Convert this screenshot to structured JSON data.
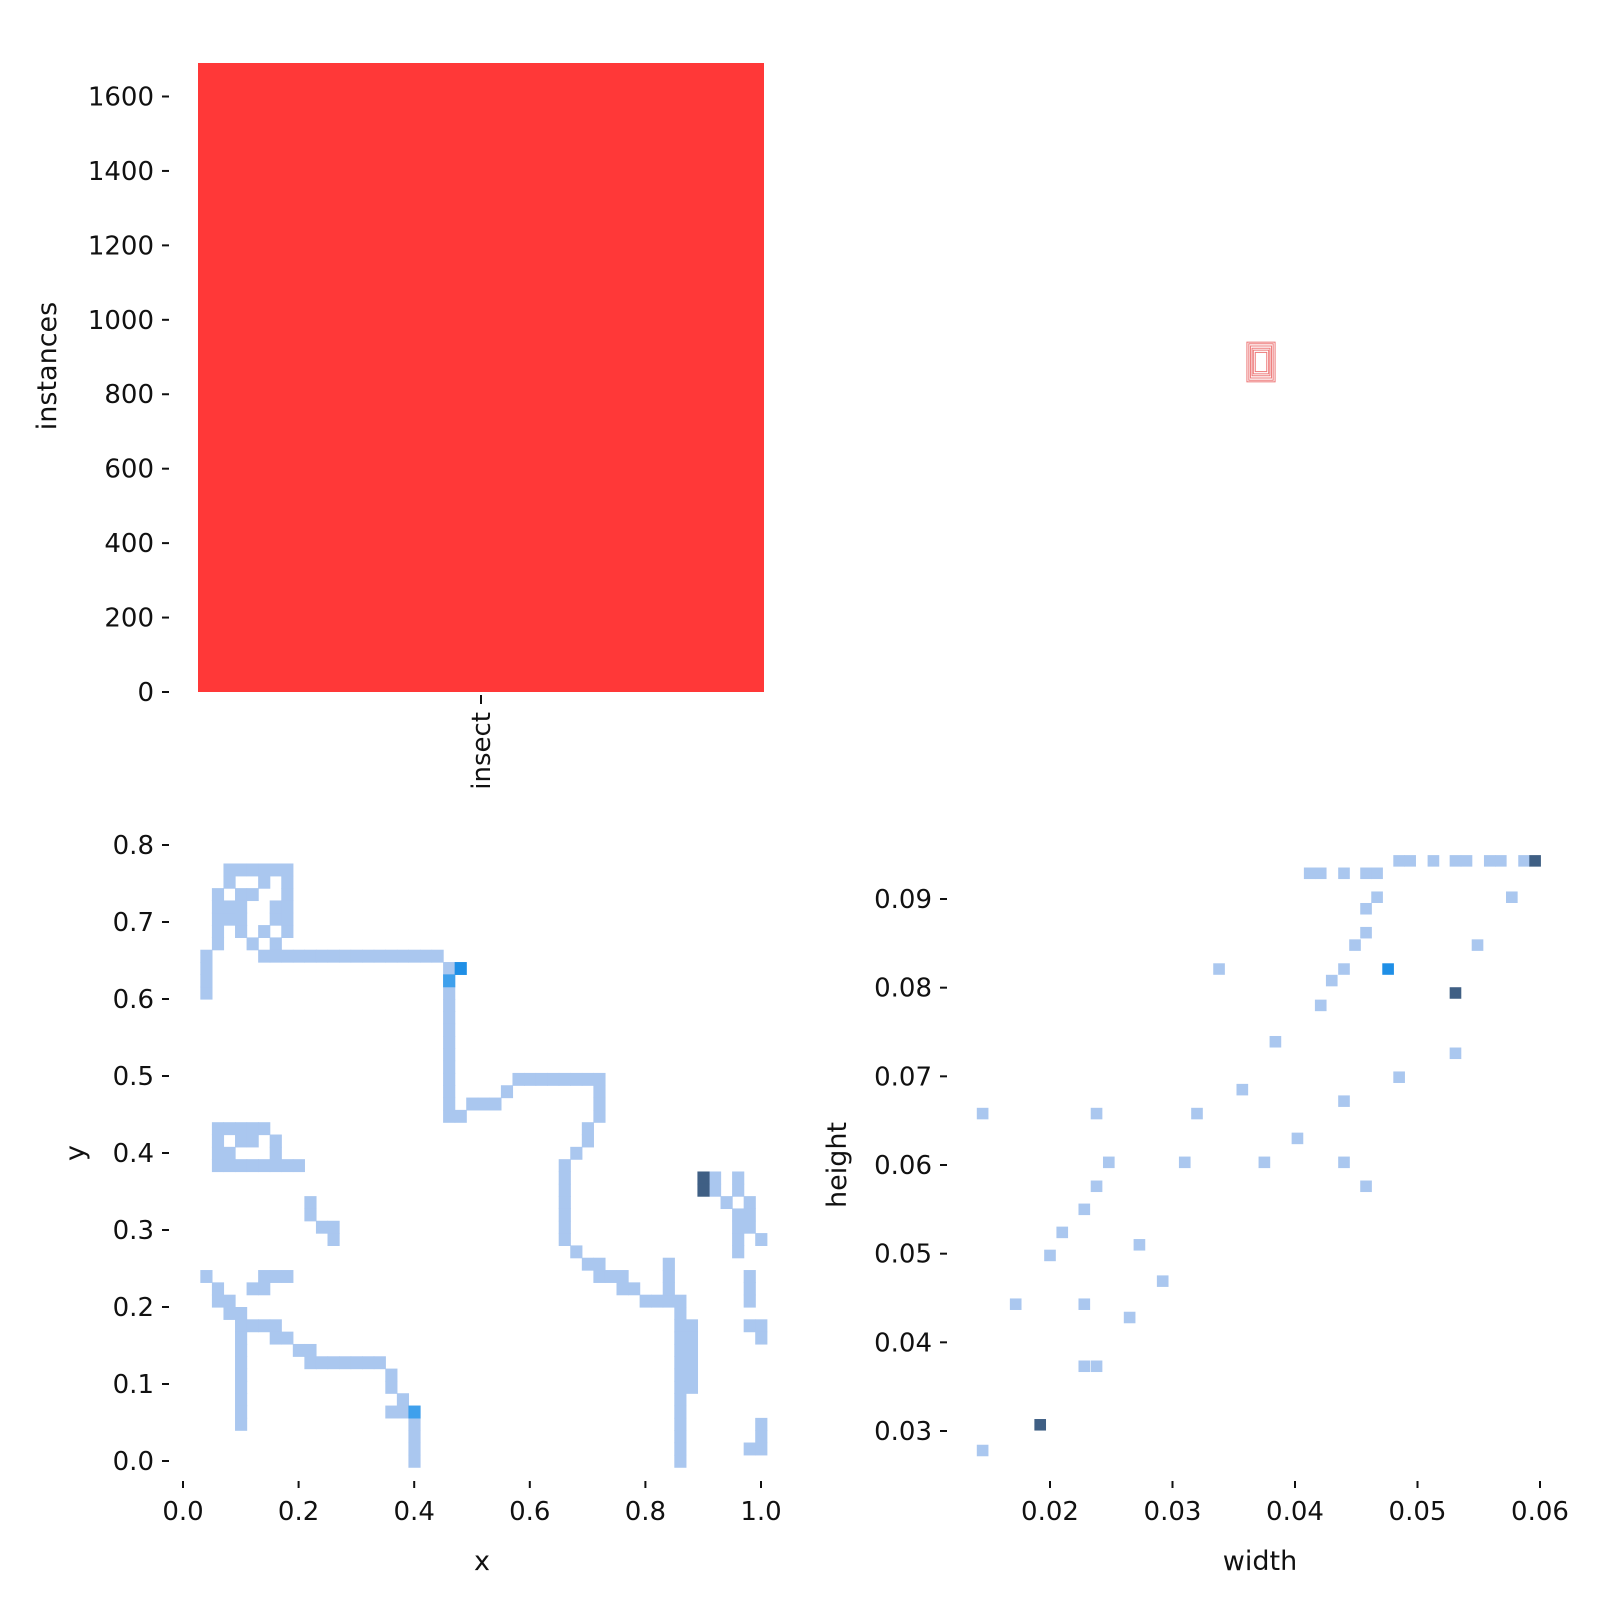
{
  "colors": {
    "bar": "#ff3838",
    "hist_light": "#aac7ef",
    "hist_mid": "#3fa0ec",
    "hist_bright": "#1f8fe6",
    "hist_dark": "#3f5f84",
    "box_stroke": "#e53e3e"
  },
  "chart_data": [
    {
      "id": "class-counts",
      "type": "bar",
      "categories": [
        "insect"
      ],
      "values": [
        1690
      ],
      "ylabel": "instances",
      "xlabel": "",
      "ylim": [
        0,
        1690
      ],
      "yticks": [
        0,
        200,
        400,
        600,
        800,
        1000,
        1200,
        1400,
        1600
      ],
      "ytick_labels": [
        "0",
        "200",
        "400",
        "600",
        "800",
        "1000",
        "1200",
        "1400",
        "1600"
      ],
      "grid": false
    },
    {
      "id": "box-overlay",
      "type": "scatter",
      "description_units": "normalized box width/height centered",
      "boxes": [
        {
          "w": 0.018,
          "h": 0.03
        },
        {
          "w": 0.024,
          "h": 0.037
        },
        {
          "w": 0.028,
          "h": 0.043
        },
        {
          "w": 0.033,
          "h": 0.05
        },
        {
          "w": 0.038,
          "h": 0.057
        },
        {
          "w": 0.044,
          "h": 0.062
        }
      ]
    },
    {
      "id": "xy-hist",
      "type": "heatmap",
      "xlabel": "x",
      "ylabel": "y",
      "xlim": [
        0.0,
        1.0
      ],
      "ylim": [
        0.0,
        0.8
      ],
      "xticks": [
        0.0,
        0.2,
        0.4,
        0.6,
        0.8,
        1.0
      ],
      "xtick_labels": [
        "0.0",
        "0.2",
        "0.4",
        "0.6",
        "0.8",
        "1.0"
      ],
      "yticks": [
        0.0,
        0.1,
        0.2,
        0.3,
        0.4,
        0.5,
        0.6,
        0.7,
        0.8
      ],
      "ytick_labels": [
        "0.0",
        "0.1",
        "0.2",
        "0.3",
        "0.4",
        "0.5",
        "0.6",
        "0.7",
        "0.8"
      ],
      "bin_width": 0.02,
      "bin_height": 0.016,
      "paths": [
        [
          [
            0.04,
            0.6
          ],
          [
            0.04,
            0.66
          ],
          [
            0.06,
            0.68
          ],
          [
            0.06,
            0.72
          ],
          [
            0.08,
            0.76
          ],
          [
            0.12,
            0.76
          ],
          [
            0.18,
            0.76
          ],
          [
            0.18,
            0.7
          ],
          [
            0.16,
            0.66
          ],
          [
            0.2,
            0.66
          ],
          [
            0.22,
            0.65
          ],
          [
            0.26,
            0.66
          ],
          [
            0.28,
            0.65
          ],
          [
            0.34,
            0.65
          ],
          [
            0.36,
            0.66
          ],
          [
            0.4,
            0.65
          ],
          [
            0.44,
            0.65
          ],
          [
            0.46,
            0.64
          ],
          [
            0.46,
            0.52
          ],
          [
            0.46,
            0.45
          ],
          [
            0.5,
            0.46
          ],
          [
            0.54,
            0.47
          ],
          [
            0.58,
            0.49
          ],
          [
            0.66,
            0.49
          ],
          [
            0.72,
            0.49
          ],
          [
            0.72,
            0.46
          ],
          [
            0.7,
            0.42
          ],
          [
            0.66,
            0.38
          ],
          [
            0.66,
            0.28
          ],
          [
            0.7,
            0.26
          ],
          [
            0.74,
            0.24
          ],
          [
            0.78,
            0.22
          ],
          [
            0.82,
            0.2
          ],
          [
            0.84,
            0.22
          ],
          [
            0.86,
            0.2
          ],
          [
            0.86,
            0.1
          ],
          [
            0.86,
            0.0
          ]
        ],
        [
          [
            0.06,
            0.7
          ],
          [
            0.08,
            0.72
          ],
          [
            0.12,
            0.74
          ],
          [
            0.14,
            0.76
          ]
        ],
        [
          [
            0.1,
            0.74
          ],
          [
            0.1,
            0.68
          ],
          [
            0.14,
            0.66
          ]
        ],
        [
          [
            0.14,
            0.68
          ],
          [
            0.16,
            0.72
          ]
        ],
        [
          [
            0.06,
            0.43
          ],
          [
            0.06,
            0.38
          ],
          [
            0.1,
            0.38
          ],
          [
            0.16,
            0.38
          ],
          [
            0.2,
            0.38
          ]
        ],
        [
          [
            0.06,
            0.43
          ],
          [
            0.14,
            0.43
          ],
          [
            0.16,
            0.4
          ]
        ],
        [
          [
            0.08,
            0.4
          ],
          [
            0.12,
            0.42
          ]
        ],
        [
          [
            0.22,
            0.34
          ],
          [
            0.24,
            0.31
          ],
          [
            0.26,
            0.29
          ]
        ],
        [
          [
            0.04,
            0.24
          ],
          [
            0.06,
            0.21
          ],
          [
            0.08,
            0.19
          ],
          [
            0.1,
            0.18
          ],
          [
            0.14,
            0.18
          ],
          [
            0.16,
            0.16
          ],
          [
            0.2,
            0.15
          ],
          [
            0.22,
            0.13
          ],
          [
            0.26,
            0.12
          ],
          [
            0.34,
            0.12
          ],
          [
            0.36,
            0.1
          ],
          [
            0.38,
            0.07
          ],
          [
            0.4,
            0.05
          ],
          [
            0.4,
            0.0
          ]
        ],
        [
          [
            0.1,
            0.17
          ],
          [
            0.1,
            0.1
          ]
        ],
        [
          [
            0.1,
            0.08
          ],
          [
            0.1,
            0.04
          ]
        ],
        [
          [
            0.12,
            0.22
          ],
          [
            0.14,
            0.24
          ],
          [
            0.18,
            0.24
          ]
        ],
        [
          [
            0.36,
            0.06
          ],
          [
            0.38,
            0.08
          ]
        ],
        [
          [
            0.92,
            0.36
          ],
          [
            0.94,
            0.33
          ],
          [
            0.96,
            0.3
          ],
          [
            0.96,
            0.27
          ]
        ],
        [
          [
            0.96,
            0.36
          ],
          [
            0.98,
            0.31
          ],
          [
            1.0,
            0.28
          ]
        ],
        [
          [
            0.98,
            0.24
          ],
          [
            0.98,
            0.2
          ]
        ],
        [
          [
            0.98,
            0.18
          ],
          [
            1.0,
            0.16
          ]
        ],
        [
          [
            0.98,
            0.02
          ],
          [
            1.0,
            0.04
          ],
          [
            1.0,
            0.01
          ]
        ],
        [
          [
            0.84,
            0.26
          ],
          [
            0.84,
            0.22
          ],
          [
            0.88,
            0.17
          ],
          [
            0.88,
            0.1
          ]
        ]
      ],
      "highlights": [
        {
          "x": 0.48,
          "y": 0.64,
          "level": "bright"
        },
        {
          "x": 0.46,
          "y": 0.62,
          "level": "mid"
        },
        {
          "x": 0.46,
          "y": 0.63,
          "level": "mid"
        },
        {
          "x": 0.4,
          "y": 0.06,
          "level": "mid"
        },
        {
          "x": 0.9,
          "y": 0.36,
          "level": "dark"
        },
        {
          "x": 0.9,
          "y": 0.35,
          "level": "dark"
        }
      ]
    },
    {
      "id": "wh-hist",
      "type": "heatmap",
      "xlabel": "width",
      "ylabel": "height",
      "xlim": [
        0.0125,
        0.06
      ],
      "ylim": [
        0.0265,
        0.0955
      ],
      "xticks": [
        0.02,
        0.03,
        0.04,
        0.05,
        0.06
      ],
      "xtick_labels": [
        "0.02",
        "0.03",
        "0.04",
        "0.05",
        "0.06"
      ],
      "yticks": [
        0.03,
        0.04,
        0.05,
        0.06,
        0.07,
        0.08,
        0.09
      ],
      "ytick_labels": [
        "0.03",
        "0.04",
        "0.05",
        "0.06",
        "0.07",
        "0.08",
        "0.09"
      ],
      "bin_width": 0.00095,
      "bin_height": 0.0013,
      "cells": [
        {
          "x": 0.0145,
          "y": 0.0278,
          "level": "light"
        },
        {
          "x": 0.0192,
          "y": 0.0307,
          "level": "dark"
        },
        {
          "x": 0.0145,
          "y": 0.0658,
          "level": "light"
        },
        {
          "x": 0.0172,
          "y": 0.0443,
          "level": "light"
        },
        {
          "x": 0.02,
          "y": 0.0498,
          "level": "light"
        },
        {
          "x": 0.021,
          "y": 0.0524,
          "level": "light"
        },
        {
          "x": 0.0228,
          "y": 0.0443,
          "level": "light"
        },
        {
          "x": 0.0228,
          "y": 0.0373,
          "level": "light"
        },
        {
          "x": 0.0238,
          "y": 0.0373,
          "level": "light"
        },
        {
          "x": 0.0228,
          "y": 0.055,
          "level": "light"
        },
        {
          "x": 0.0238,
          "y": 0.0576,
          "level": "light"
        },
        {
          "x": 0.0238,
          "y": 0.0658,
          "level": "light"
        },
        {
          "x": 0.0248,
          "y": 0.0603,
          "level": "light"
        },
        {
          "x": 0.0265,
          "y": 0.0428,
          "level": "light"
        },
        {
          "x": 0.0273,
          "y": 0.051,
          "level": "light"
        },
        {
          "x": 0.0292,
          "y": 0.0469,
          "level": "light"
        },
        {
          "x": 0.031,
          "y": 0.0603,
          "level": "light"
        },
        {
          "x": 0.032,
          "y": 0.0658,
          "level": "light"
        },
        {
          "x": 0.0338,
          "y": 0.0821,
          "level": "light"
        },
        {
          "x": 0.0357,
          "y": 0.0685,
          "level": "light"
        },
        {
          "x": 0.0375,
          "y": 0.0603,
          "level": "light"
        },
        {
          "x": 0.0384,
          "y": 0.0739,
          "level": "light"
        },
        {
          "x": 0.0402,
          "y": 0.063,
          "level": "light"
        },
        {
          "x": 0.0412,
          "y": 0.0929,
          "level": "light"
        },
        {
          "x": 0.0421,
          "y": 0.0929,
          "level": "light"
        },
        {
          "x": 0.0421,
          "y": 0.078,
          "level": "light"
        },
        {
          "x": 0.043,
          "y": 0.0808,
          "level": "light"
        },
        {
          "x": 0.044,
          "y": 0.0821,
          "level": "light"
        },
        {
          "x": 0.044,
          "y": 0.0929,
          "level": "light"
        },
        {
          "x": 0.044,
          "y": 0.0672,
          "level": "light"
        },
        {
          "x": 0.044,
          "y": 0.0603,
          "level": "light"
        },
        {
          "x": 0.0449,
          "y": 0.0848,
          "level": "light"
        },
        {
          "x": 0.0458,
          "y": 0.0862,
          "level": "light"
        },
        {
          "x": 0.0458,
          "y": 0.0889,
          "level": "light"
        },
        {
          "x": 0.0458,
          "y": 0.0576,
          "level": "light"
        },
        {
          "x": 0.0458,
          "y": 0.0929,
          "level": "light"
        },
        {
          "x": 0.0467,
          "y": 0.0929,
          "level": "light"
        },
        {
          "x": 0.0467,
          "y": 0.0902,
          "level": "light"
        },
        {
          "x": 0.0476,
          "y": 0.0821,
          "level": "bright"
        },
        {
          "x": 0.0485,
          "y": 0.0699,
          "level": "light"
        },
        {
          "x": 0.0485,
          "y": 0.0943,
          "level": "light"
        },
        {
          "x": 0.0494,
          "y": 0.0943,
          "level": "light"
        },
        {
          "x": 0.0513,
          "y": 0.0943,
          "level": "light"
        },
        {
          "x": 0.0531,
          "y": 0.0943,
          "level": "light"
        },
        {
          "x": 0.054,
          "y": 0.0943,
          "level": "light"
        },
        {
          "x": 0.0531,
          "y": 0.0794,
          "level": "dark"
        },
        {
          "x": 0.0531,
          "y": 0.0726,
          "level": "light"
        },
        {
          "x": 0.0549,
          "y": 0.0848,
          "level": "light"
        },
        {
          "x": 0.0559,
          "y": 0.0943,
          "level": "light"
        },
        {
          "x": 0.0568,
          "y": 0.0943,
          "level": "light"
        },
        {
          "x": 0.0577,
          "y": 0.0902,
          "level": "light"
        },
        {
          "x": 0.0587,
          "y": 0.0943,
          "level": "light"
        },
        {
          "x": 0.0596,
          "y": 0.0943,
          "level": "dark"
        }
      ]
    }
  ]
}
